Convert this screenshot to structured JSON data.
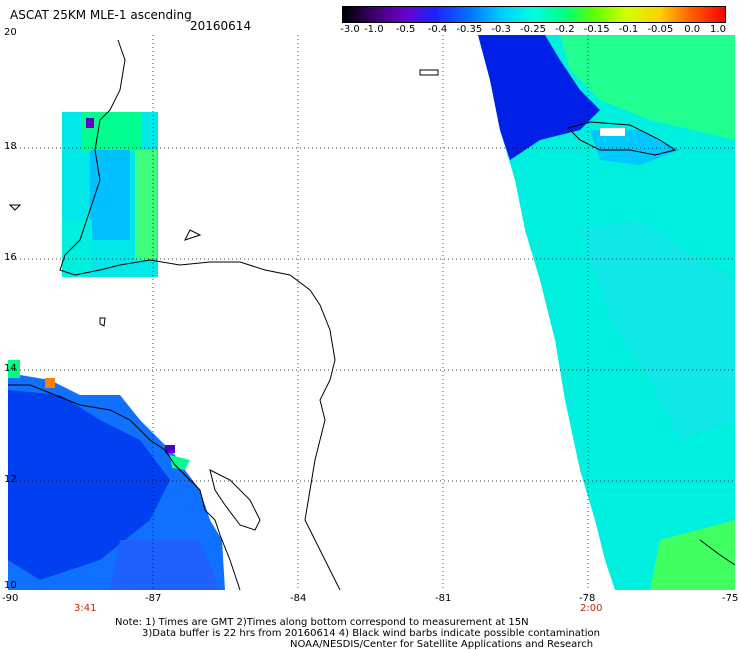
{
  "header": {
    "title": "ASCAT 25KM MLE-1 ascending",
    "date": "20160614"
  },
  "colorbar": {
    "labels": [
      "-3.0",
      "-1.0",
      "-0.5",
      "-0.4",
      "-0.35",
      "-0.3",
      "-0.25",
      "-0.2",
      "-0.15",
      "-0.1",
      "-0.05",
      "0.0",
      "1.0"
    ],
    "colors": [
      "#000000",
      "#3a006a",
      "#6a00c8",
      "#2020ff",
      "#0070ff",
      "#00c8ff",
      "#00ffe0",
      "#00ff80",
      "#60ff00",
      "#d0ff00",
      "#ffd000",
      "#ff6000",
      "#ff0000"
    ]
  },
  "axes": {
    "lon_labels": [
      "-90",
      "-87",
      "-84",
      "-81",
      "-78",
      "-75"
    ],
    "lat_labels": [
      "20",
      "18",
      "16",
      "14",
      "12",
      "10"
    ],
    "pass_times": [
      "3:41",
      "2:00"
    ]
  },
  "notes": {
    "line1": "Note: 1) Times are GMT 2)Times along bottom correspond to measurement at 15N",
    "line2": "3)Data buffer is 22 hrs from 20160614 4) Black wind barbs indicate possible contamination",
    "line3": "NOAA/NESDIS/Center for Satellite Applications and Research"
  },
  "colors": {
    "accent_time": "#cc2200",
    "grid": "#000000"
  }
}
